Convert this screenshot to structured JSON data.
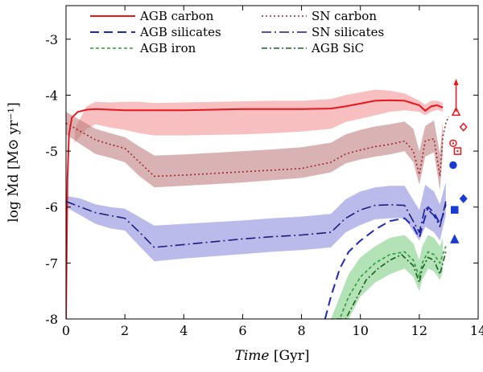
{
  "chart_data": {
    "type": "line",
    "title": "",
    "xlabel": {
      "italic": "Time",
      "unit": " [Gyr]"
    },
    "ylabel": "log Ṁd [M⊙ yr⁻¹]",
    "xlim": [
      0,
      14
    ],
    "ylim": [
      -8,
      -2.4
    ],
    "xticks": [
      0,
      2,
      4,
      6,
      8,
      10,
      12,
      14
    ],
    "yticks": [
      -8,
      -7,
      -6,
      -5,
      -4,
      -3
    ],
    "legend_position": "top-center",
    "series": [
      {
        "name": "AGB carbon",
        "color": "#e8171c",
        "dash": "",
        "width": 2,
        "x": [
          0,
          0.05,
          0.1,
          0.2,
          0.4,
          0.7,
          1.0,
          1.5,
          2.0,
          2.5,
          3.0,
          4,
          5,
          6,
          7,
          8,
          9,
          9.5,
          10,
          10.5,
          11,
          11.5,
          12,
          12.2,
          12.4,
          12.6,
          12.8
        ],
        "y": [
          -8,
          -5.5,
          -4.7,
          -4.4,
          -4.3,
          -4.26,
          -4.25,
          -4.26,
          -4.27,
          -4.27,
          -4.27,
          -4.27,
          -4.26,
          -4.25,
          -4.25,
          -4.25,
          -4.24,
          -4.2,
          -4.15,
          -4.1,
          -4.09,
          -4.1,
          -4.18,
          -4.28,
          -4.2,
          -4.18,
          -4.22
        ]
      },
      {
        "name": "SN carbon",
        "color": "#a0262a",
        "dash": "2,3",
        "width": 1.6,
        "x": [
          0,
          0.5,
          1.0,
          1.5,
          2.0,
          2.5,
          3.0,
          4,
          5,
          6,
          7,
          8,
          9,
          9.5,
          10,
          10.5,
          11,
          11.5,
          11.8,
          12.0,
          12.2,
          12.5,
          12.7,
          12.8,
          12.9,
          13.0
        ],
        "y": [
          -4.5,
          -4.65,
          -4.8,
          -4.88,
          -4.95,
          -5.2,
          -5.45,
          -5.43,
          -5.4,
          -5.37,
          -5.34,
          -5.31,
          -5.2,
          -5.05,
          -4.98,
          -4.92,
          -4.88,
          -4.82,
          -5.0,
          -5.42,
          -4.82,
          -4.78,
          -5.45,
          -4.75,
          -4.5,
          -4.38
        ]
      },
      {
        "name": "AGB silicates",
        "color": "#1e27b8",
        "dash": "11,6",
        "width": 2,
        "x": [
          8.8,
          9.0,
          9.3,
          9.6,
          10.0,
          10.5,
          11.0,
          11.5,
          11.8,
          12.0,
          12.1,
          12.3,
          12.5,
          12.7,
          12.8,
          12.9
        ],
        "y": [
          -8.2,
          -7.6,
          -7.1,
          -6.8,
          -6.6,
          -6.4,
          -6.25,
          -6.2,
          -6.35,
          -6.55,
          -6.35,
          -6.0,
          -6.1,
          -6.3,
          -6.15,
          -5.95
        ]
      },
      {
        "name": "SN silicates",
        "color": "#1a1f7a",
        "dash": "12,4,2,4",
        "width": 1.6,
        "x": [
          0,
          0.5,
          1.0,
          1.5,
          2.0,
          2.5,
          3.0,
          4,
          5,
          6,
          7,
          8,
          9,
          9.5,
          10,
          10.5,
          11,
          11.5,
          12.0,
          12.2,
          12.5,
          12.7,
          12.9
        ],
        "y": [
          -5.9,
          -6.0,
          -6.1,
          -6.15,
          -6.2,
          -6.45,
          -6.72,
          -6.67,
          -6.62,
          -6.57,
          -6.53,
          -6.5,
          -6.45,
          -6.2,
          -6.05,
          -5.97,
          -5.96,
          -5.97,
          -6.45,
          -6.0,
          -6.15,
          -6.35,
          -5.9
        ]
      },
      {
        "name": "AGB iron",
        "color": "#2e9b3a",
        "dash": "4,3",
        "width": 1.6,
        "x": [
          9.0,
          9.3,
          9.6,
          10.0,
          10.5,
          11.0,
          11.5,
          11.8,
          12.0,
          12.1,
          12.3,
          12.5,
          12.7,
          12.8,
          12.9
        ],
        "y": [
          -8.2,
          -8.0,
          -7.6,
          -7.25,
          -7.0,
          -6.85,
          -6.8,
          -6.95,
          -7.25,
          -7.0,
          -6.8,
          -6.85,
          -7.0,
          -6.85,
          -6.7
        ]
      },
      {
        "name": "AGB SiC",
        "color": "#1a5e22",
        "dash": "7,3,2,3",
        "width": 1.6,
        "x": [
          9.2,
          9.5,
          9.8,
          10.2,
          10.6,
          11.0,
          11.4,
          11.8,
          12.0,
          12.1,
          12.3,
          12.5,
          12.7,
          12.8,
          12.9
        ],
        "y": [
          -8.2,
          -8.0,
          -7.7,
          -7.3,
          -7.1,
          -6.95,
          -6.85,
          -7.05,
          -7.35,
          -7.1,
          -6.9,
          -6.95,
          -7.2,
          -7.0,
          -6.8
        ]
      }
    ],
    "bands": [
      {
        "name": "carbon-band",
        "color": "#f08a8a",
        "opacity": 0.55,
        "x": [
          0.3,
          0.7,
          1.0,
          1.5,
          2.0,
          2.5,
          3.0,
          4,
          5,
          6,
          7,
          8,
          9,
          9.5,
          10,
          10.5,
          11,
          11.5,
          12.0,
          12.2,
          12.4,
          12.6,
          12.8
        ],
        "upper": [
          -4.6,
          -4.2,
          -4.12,
          -4.13,
          -4.12,
          -4.12,
          -4.14,
          -4.13,
          -4.12,
          -4.11,
          -4.1,
          -4.1,
          -4.07,
          -4.0,
          -3.95,
          -3.9,
          -3.92,
          -3.97,
          -4.1,
          -4.17,
          -4.1,
          -4.1,
          -4.14
        ],
        "lower": [
          -4.85,
          -4.6,
          -4.52,
          -4.58,
          -4.62,
          -4.68,
          -4.72,
          -4.72,
          -4.71,
          -4.7,
          -4.68,
          -4.65,
          -4.6,
          -4.48,
          -4.42,
          -4.36,
          -4.3,
          -4.27,
          -4.3,
          -4.36,
          -4.3,
          -4.26,
          -4.3
        ]
      },
      {
        "name": "sn-carbon-band",
        "color": "#b97474",
        "opacity": 0.55,
        "x": [
          0,
          0.5,
          1.0,
          1.5,
          2.0,
          2.5,
          3.0,
          4,
          5,
          6,
          7,
          8,
          9,
          9.5,
          10,
          10.5,
          11,
          11.5,
          11.8,
          12.0,
          12.2,
          12.5,
          12.7,
          12.8
        ],
        "upper": [
          -4.3,
          -4.45,
          -4.6,
          -4.68,
          -4.75,
          -4.92,
          -5.08,
          -5.06,
          -5.03,
          -5.0,
          -4.97,
          -4.93,
          -4.85,
          -4.7,
          -4.62,
          -4.56,
          -4.52,
          -4.47,
          -4.6,
          -5.0,
          -4.55,
          -4.45,
          -5.05,
          -4.45
        ],
        "lower": [
          -4.7,
          -4.88,
          -5.05,
          -5.12,
          -5.2,
          -5.45,
          -5.65,
          -5.62,
          -5.59,
          -5.56,
          -5.52,
          -5.48,
          -5.38,
          -5.22,
          -5.15,
          -5.1,
          -5.06,
          -5.0,
          -5.2,
          -5.6,
          -5.1,
          -5.02,
          -5.7,
          -5.0
        ]
      },
      {
        "name": "silicate-band",
        "color": "#8e8ede",
        "opacity": 0.6,
        "x": [
          0,
          0.5,
          1.0,
          1.5,
          2.0,
          2.5,
          3.0,
          4,
          5,
          6,
          7,
          8,
          9,
          9.5,
          10,
          10.5,
          11,
          11.5,
          12.0,
          12.2,
          12.5,
          12.7,
          12.9
        ],
        "upper": [
          -5.8,
          -5.85,
          -5.95,
          -6.0,
          -6.03,
          -6.18,
          -6.33,
          -6.3,
          -6.27,
          -6.24,
          -6.2,
          -6.17,
          -6.12,
          -5.86,
          -5.72,
          -5.65,
          -5.62,
          -5.62,
          -6.05,
          -5.6,
          -5.72,
          -5.95,
          -5.55
        ],
        "lower": [
          -6.0,
          -6.15,
          -6.3,
          -6.38,
          -6.42,
          -6.7,
          -6.97,
          -6.92,
          -6.88,
          -6.84,
          -6.8,
          -6.77,
          -6.72,
          -6.45,
          -6.32,
          -6.22,
          -6.2,
          -6.2,
          -6.6,
          -6.35,
          -6.45,
          -6.6,
          -6.15
        ]
      },
      {
        "name": "iron-band",
        "color": "#7fcf86",
        "opacity": 0.6,
        "x": [
          9.0,
          9.3,
          9.6,
          10.0,
          10.5,
          11.0,
          11.5,
          11.8,
          12.0,
          12.1,
          12.3,
          12.5,
          12.7,
          12.8
        ],
        "upper": [
          -8.0,
          -7.6,
          -7.2,
          -6.9,
          -6.7,
          -6.55,
          -6.5,
          -6.65,
          -6.95,
          -6.7,
          -6.5,
          -6.55,
          -6.7,
          -6.55
        ],
        "lower": [
          -8.2,
          -8.2,
          -8.0,
          -7.6,
          -7.35,
          -7.2,
          -7.1,
          -7.25,
          -7.5,
          -7.3,
          -7.1,
          -7.15,
          -7.3,
          -7.15
        ]
      }
    ],
    "markers": [
      {
        "shape": "triangle-open",
        "color": "#e8171c",
        "x": 13.25,
        "y": -4.3
      },
      {
        "shape": "arrow-up",
        "color": "#e8171c",
        "x": 13.25,
        "y": -4.3,
        "y_to": -3.75
      },
      {
        "shape": "diamond-open",
        "color": "#e8171c",
        "x": 13.5,
        "y": -4.57
      },
      {
        "shape": "circle-dot",
        "color": "#e8171c",
        "x": 13.15,
        "y": -4.86
      },
      {
        "shape": "square-dot",
        "color": "#e8171c",
        "x": 13.3,
        "y": -5.0
      },
      {
        "shape": "circle-filled",
        "color": "#1a3ad6",
        "x": 13.15,
        "y": -5.25
      },
      {
        "shape": "diamond-filled",
        "color": "#1a3ad6",
        "x": 13.5,
        "y": -5.85
      },
      {
        "shape": "square-filled",
        "color": "#1a3ad6",
        "x": 13.2,
        "y": -6.05
      },
      {
        "shape": "triangle-filled",
        "color": "#1a3ad6",
        "x": 13.2,
        "y": -6.58
      }
    ]
  }
}
